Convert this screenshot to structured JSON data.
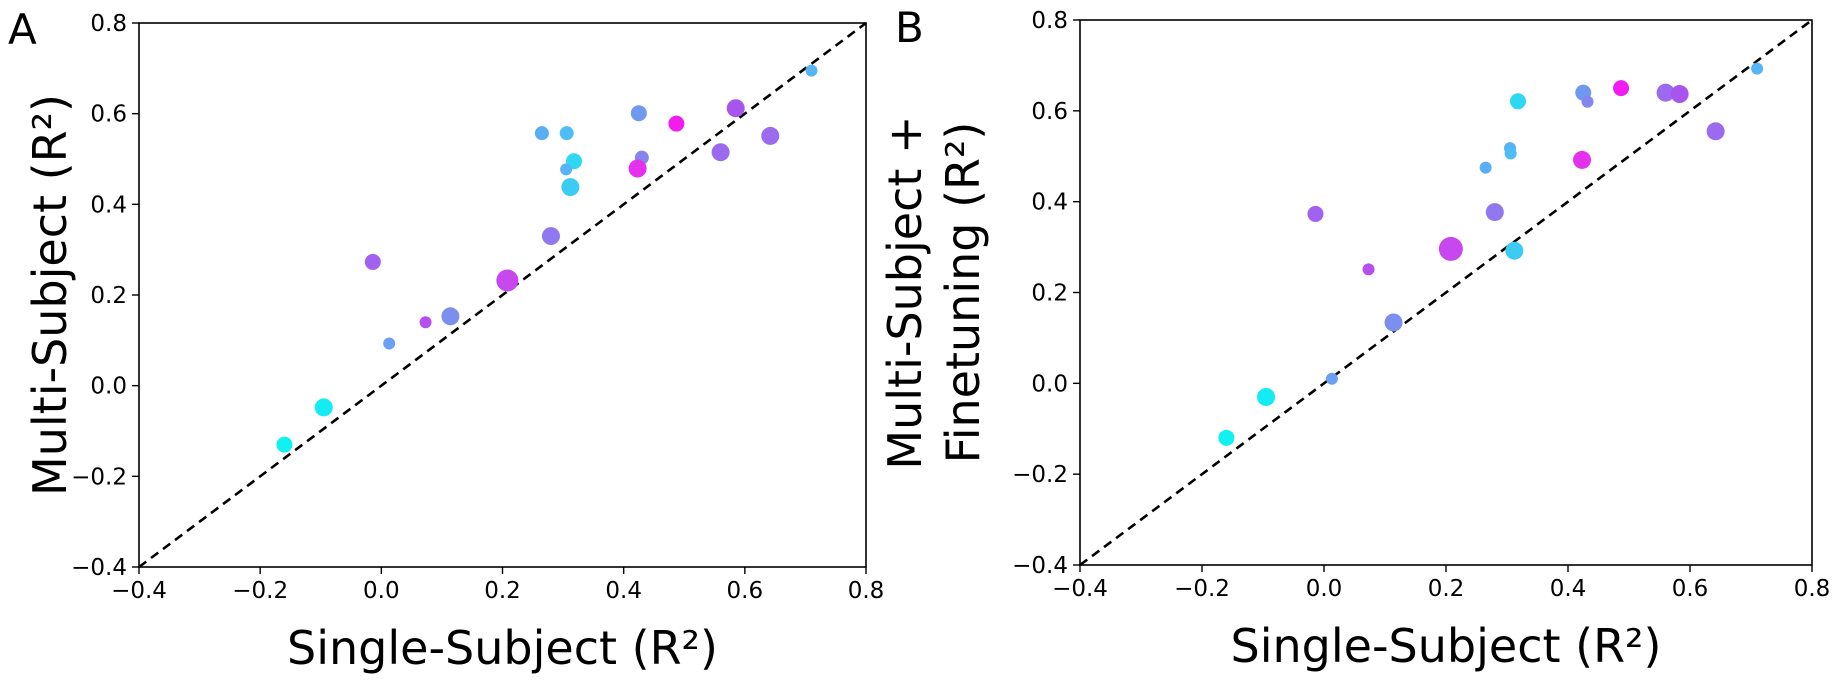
{
  "chart_data": [
    {
      "type": "scatter",
      "panel_label": "A",
      "xlabel": "Single-Subject (R²)",
      "ylabel": "Multi-Subject (R²)",
      "ylabel_lines": [
        "Multi-Subject (R²)"
      ],
      "xlim": [
        -0.4,
        0.8
      ],
      "ylim": [
        -0.4,
        0.8
      ],
      "xticks": [
        -0.4,
        -0.2,
        0.0,
        0.2,
        0.4,
        0.6,
        0.8
      ],
      "yticks": [
        -0.4,
        -0.2,
        0.0,
        0.2,
        0.4,
        0.6,
        0.8
      ],
      "xtick_labels": [
        "−0.4",
        "−0.2",
        "0.0",
        "0.2",
        "0.4",
        "0.6",
        "0.8"
      ],
      "ytick_labels": [
        "−0.4",
        "−0.2",
        "0.0",
        "0.2",
        "0.4",
        "0.6",
        "0.8"
      ],
      "identity_line": true,
      "grid": false,
      "points": [
        {
          "x": 0.71,
          "y": 0.695,
          "color": "#55b5f5",
          "r": 6
        },
        {
          "x": 0.585,
          "y": 0.612,
          "color": "#a855ee",
          "r": 9
        },
        {
          "x": 0.487,
          "y": 0.578,
          "color": "#f01cf0",
          "r": 8
        },
        {
          "x": 0.425,
          "y": 0.601,
          "color": "#6f98ee",
          "r": 8
        },
        {
          "x": 0.265,
          "y": 0.557,
          "color": "#5aaef4",
          "r": 7
        },
        {
          "x": 0.306,
          "y": 0.557,
          "color": "#4fbdf5",
          "r": 7
        },
        {
          "x": 0.43,
          "y": 0.503,
          "color": "#8585ee",
          "r": 7
        },
        {
          "x": 0.318,
          "y": 0.495,
          "color": "#2ed8f2",
          "r": 8
        },
        {
          "x": 0.305,
          "y": 0.477,
          "color": "#56b3f4",
          "r": 6
        },
        {
          "x": 0.423,
          "y": 0.479,
          "color": "#e530ee",
          "r": 9
        },
        {
          "x": 0.312,
          "y": 0.438,
          "color": "#3bcbf3",
          "r": 9
        },
        {
          "x": 0.56,
          "y": 0.515,
          "color": "#9b6aee",
          "r": 9
        },
        {
          "x": 0.642,
          "y": 0.551,
          "color": "#9b6aee",
          "r": 9
        },
        {
          "x": 0.28,
          "y": 0.33,
          "color": "#9178ee",
          "r": 9
        },
        {
          "x": 0.208,
          "y": 0.232,
          "color": "#c748ee",
          "r": 11
        },
        {
          "x": -0.014,
          "y": 0.273,
          "color": "#a261ee",
          "r": 8
        },
        {
          "x": 0.114,
          "y": 0.153,
          "color": "#7c8eee",
          "r": 9
        },
        {
          "x": 0.073,
          "y": 0.14,
          "color": "#b64fee",
          "r": 6
        },
        {
          "x": 0.013,
          "y": 0.093,
          "color": "#6aa1f2",
          "r": 6
        },
        {
          "x": -0.095,
          "y": -0.048,
          "color": "#13ecf2",
          "r": 9
        },
        {
          "x": -0.16,
          "y": -0.13,
          "color": "#12f1f1",
          "r": 8
        }
      ]
    },
    {
      "type": "scatter",
      "panel_label": "B",
      "xlabel": "Single-Subject (R²)",
      "ylabel": "Multi-Subject + Finetuning (R²)",
      "ylabel_lines": [
        "Multi-Subject +",
        "Finetuning (R²)"
      ],
      "xlim": [
        -0.4,
        0.8
      ],
      "ylim": [
        -0.4,
        0.8
      ],
      "xticks": [
        -0.4,
        -0.2,
        0.0,
        0.2,
        0.4,
        0.6,
        0.8
      ],
      "yticks": [
        -0.4,
        -0.2,
        0.0,
        0.2,
        0.4,
        0.6,
        0.8
      ],
      "xtick_labels": [
        "−0.4",
        "−0.2",
        "0.0",
        "0.2",
        "0.4",
        "0.6",
        "0.8"
      ],
      "ytick_labels": [
        "−0.4",
        "−0.2",
        "0.0",
        "0.2",
        "0.4",
        "0.6",
        "0.8"
      ],
      "identity_line": true,
      "grid": false,
      "points": [
        {
          "x": 0.71,
          "y": 0.693,
          "color": "#55b5f5",
          "r": 6
        },
        {
          "x": 0.487,
          "y": 0.65,
          "color": "#f01cf0",
          "r": 8
        },
        {
          "x": 0.56,
          "y": 0.64,
          "color": "#9b6aee",
          "r": 9
        },
        {
          "x": 0.583,
          "y": 0.637,
          "color": "#a855ee",
          "r": 9
        },
        {
          "x": 0.425,
          "y": 0.64,
          "color": "#6f98ee",
          "r": 8
        },
        {
          "x": 0.432,
          "y": 0.62,
          "color": "#8585ee",
          "r": 6
        },
        {
          "x": 0.318,
          "y": 0.621,
          "color": "#2ed8f2",
          "r": 8
        },
        {
          "x": 0.642,
          "y": 0.555,
          "color": "#9b6aee",
          "r": 9
        },
        {
          "x": 0.305,
          "y": 0.518,
          "color": "#56b3f4",
          "r": 6
        },
        {
          "x": 0.306,
          "y": 0.506,
          "color": "#4fbdf5",
          "r": 6
        },
        {
          "x": 0.265,
          "y": 0.475,
          "color": "#5aaef4",
          "r": 6
        },
        {
          "x": 0.423,
          "y": 0.492,
          "color": "#e530ee",
          "r": 9
        },
        {
          "x": -0.014,
          "y": 0.373,
          "color": "#a261ee",
          "r": 8
        },
        {
          "x": 0.28,
          "y": 0.377,
          "color": "#9178ee",
          "r": 9
        },
        {
          "x": 0.208,
          "y": 0.296,
          "color": "#c748ee",
          "r": 12
        },
        {
          "x": 0.312,
          "y": 0.292,
          "color": "#3bcbf3",
          "r": 9
        },
        {
          "x": 0.073,
          "y": 0.251,
          "color": "#b64fee",
          "r": 6
        },
        {
          "x": 0.114,
          "y": 0.134,
          "color": "#7c8eee",
          "r": 9
        },
        {
          "x": 0.013,
          "y": 0.01,
          "color": "#6aa1f2",
          "r": 6
        },
        {
          "x": -0.095,
          "y": -0.03,
          "color": "#13ecf2",
          "r": 9
        },
        {
          "x": -0.16,
          "y": -0.12,
          "color": "#12f1f1",
          "r": 8
        }
      ]
    }
  ]
}
